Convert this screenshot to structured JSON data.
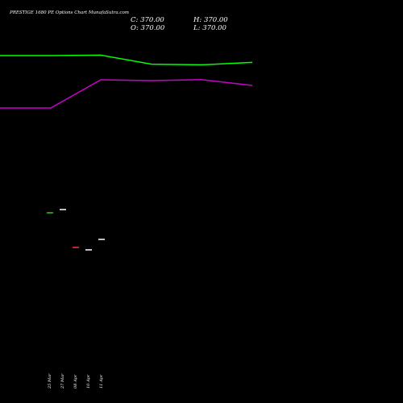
{
  "header": {
    "title": "PRESTIGE 1680  PE Options  Chart MunafaSutra.com",
    "close_label": "C: 370.00",
    "high_label": "H: 370.00",
    "open_label": "O: 370.00",
    "low_label": "L: 370.00"
  },
  "chart_data": {
    "type": "line",
    "title": "PRESTIGE 1680  PE Options  Chart MunafaSutra.com",
    "grid": false,
    "x": [
      "25 Mar",
      "27 Mar",
      "08 Apr",
      "10 Apr",
      "11 Apr"
    ],
    "series": [
      {
        "color": "#00ff00",
        "values": [
          0.855,
          0.858,
          0.802,
          0.798,
          0.813
        ]
      },
      {
        "color": "#cc00cc",
        "values": [
          0.53,
          0.705,
          0.7,
          0.706,
          0.67
        ]
      }
    ],
    "candles": [
      {
        "date": "25 Mar",
        "open": 370,
        "close": 370,
        "color": "#22cc22"
      },
      {
        "date": "27 Mar",
        "open": 370,
        "close": 370,
        "color": "#ffffff"
      },
      {
        "date": "08 Apr",
        "open": 370,
        "close": 370,
        "color": "#ff3333"
      },
      {
        "date": "10 Apr",
        "open": 370,
        "close": 370,
        "color": "#ffffff"
      },
      {
        "date": "11 Apr",
        "open": 370,
        "close": 370,
        "color": "#ffffff"
      }
    ]
  }
}
